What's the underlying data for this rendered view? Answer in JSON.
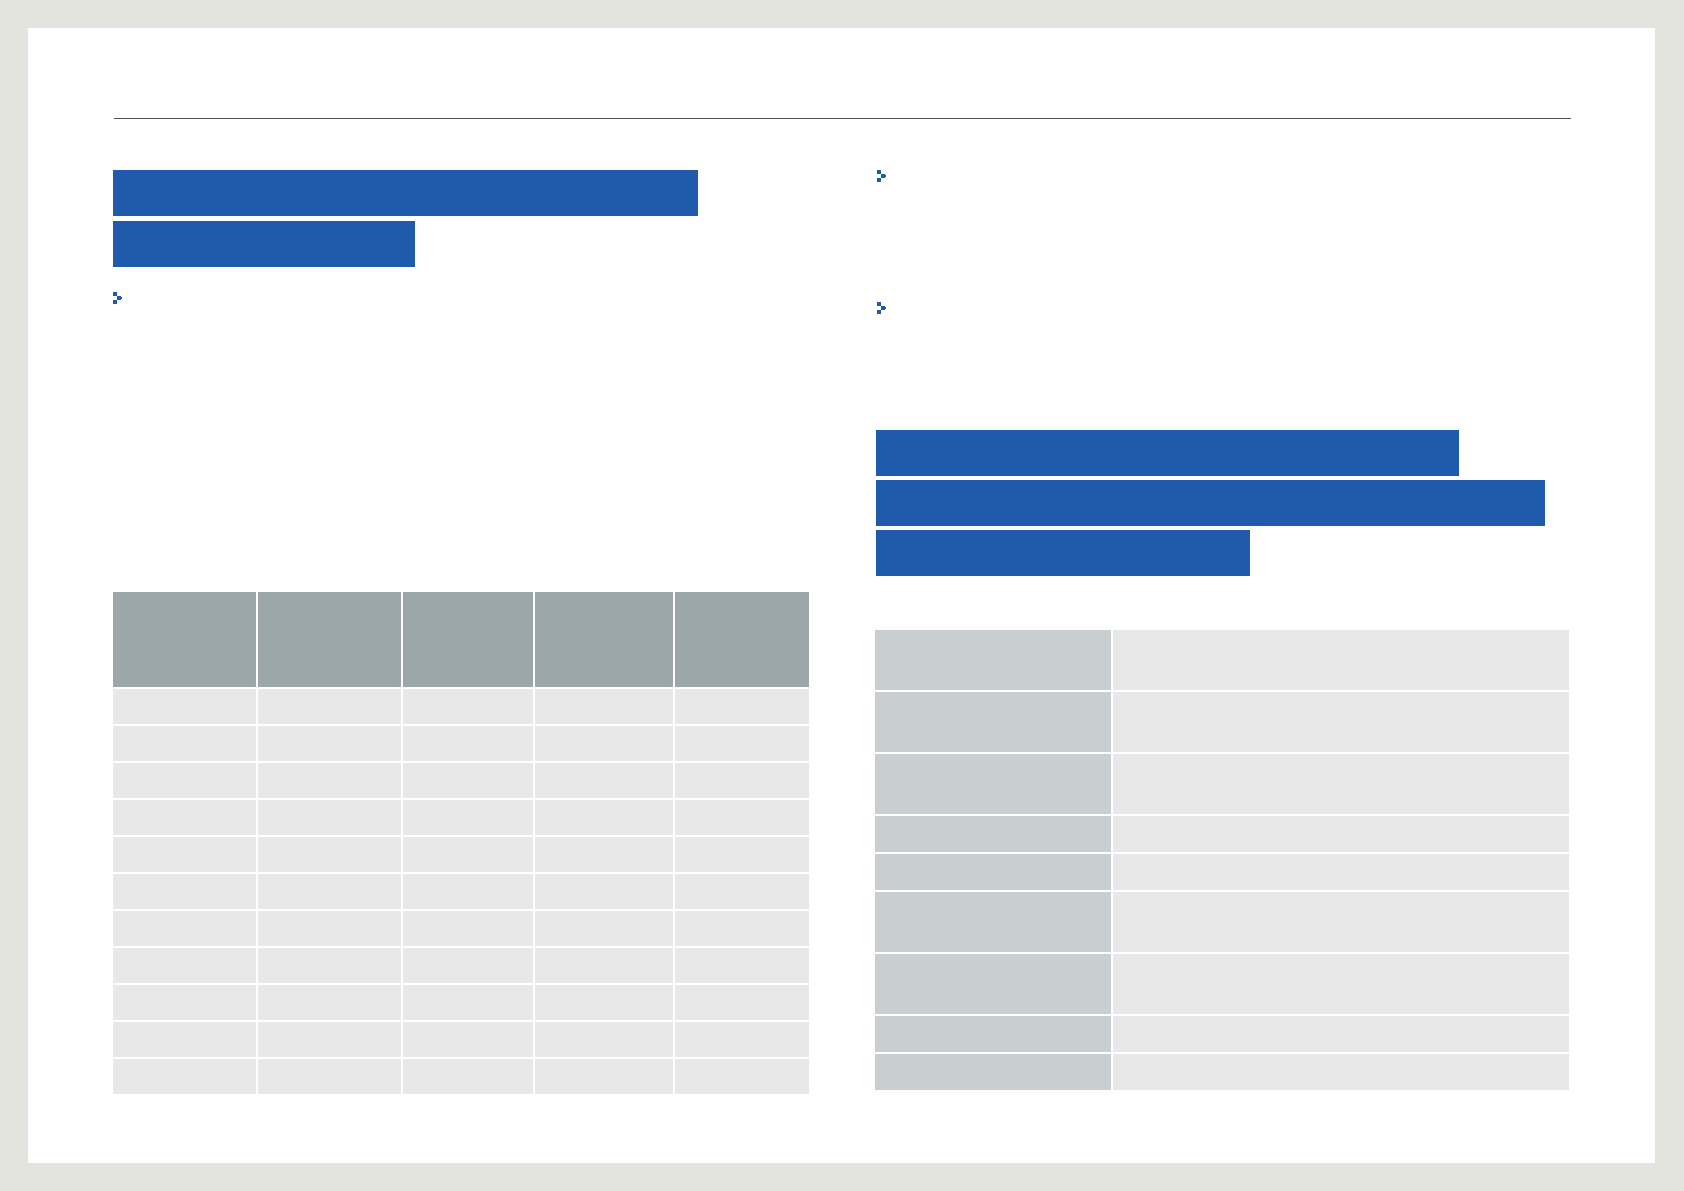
{
  "page": {
    "background": "#e4e4df",
    "paper": "#ffffff",
    "accent": "#1f5aad"
  },
  "bullets": [
    {
      "icon": "chevron-right-icon"
    },
    {
      "icon": "chevron-right-icon"
    },
    {
      "icon": "chevron-right-icon"
    }
  ],
  "left_table": {
    "header": [
      "",
      "",
      "",
      "",
      ""
    ],
    "rows": [
      [
        "",
        "",
        "",
        "",
        ""
      ],
      [
        "",
        "",
        "",
        "",
        ""
      ],
      [
        "",
        "",
        "",
        "",
        ""
      ],
      [
        "",
        "",
        "",
        "",
        ""
      ],
      [
        "",
        "",
        "",
        "",
        ""
      ],
      [
        "",
        "",
        "",
        "",
        ""
      ],
      [
        "",
        "",
        "",
        "",
        ""
      ],
      [
        "",
        "",
        "",
        "",
        ""
      ],
      [
        "",
        "",
        "",
        "",
        ""
      ],
      [
        "",
        "",
        "",
        "",
        ""
      ],
      [
        "",
        "",
        "",
        "",
        ""
      ]
    ]
  },
  "right_table": {
    "rows": [
      {
        "key": "",
        "value": ""
      },
      {
        "key": "",
        "value": ""
      },
      {
        "key": "",
        "value": ""
      },
      {
        "key": "",
        "value": ""
      },
      {
        "key": "",
        "value": ""
      },
      {
        "key": "",
        "value": ""
      },
      {
        "key": "",
        "value": ""
      },
      {
        "key": "",
        "value": ""
      },
      {
        "key": "",
        "value": ""
      }
    ]
  }
}
